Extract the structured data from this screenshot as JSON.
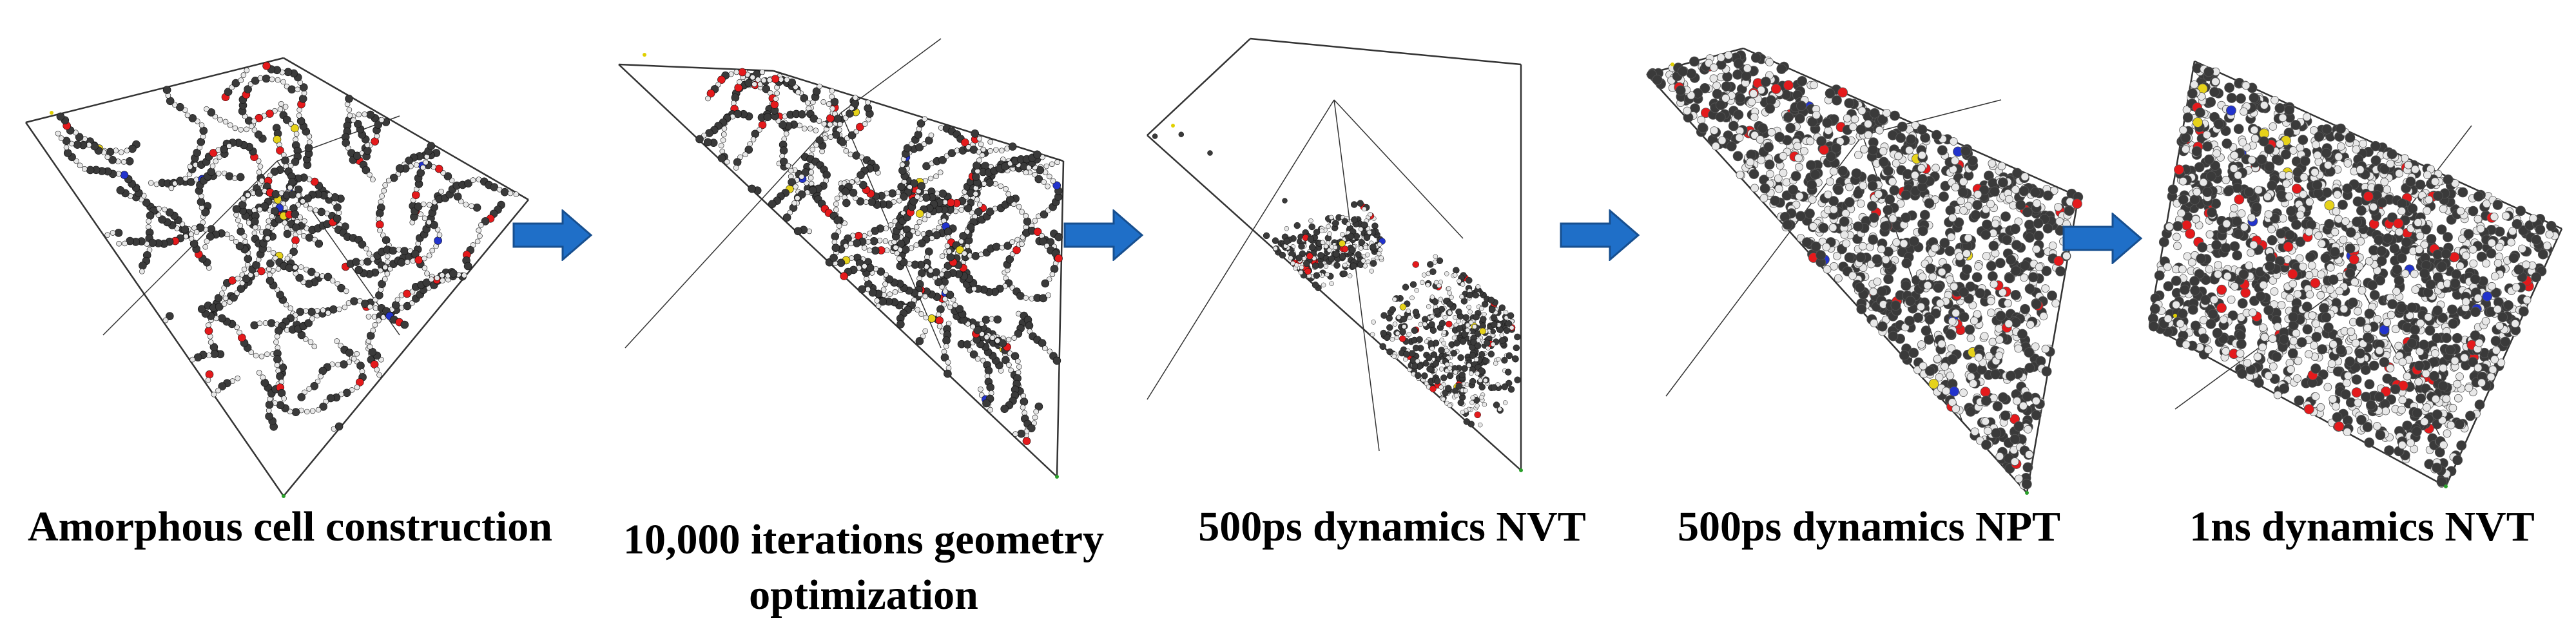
{
  "stages": [
    {
      "label": "Amorphous cell construction",
      "line2": ""
    },
    {
      "label": "10,000 iterations geometry",
      "line2": "optimization"
    },
    {
      "label": "500ps dynamics NVT",
      "line2": ""
    },
    {
      "label": "500ps dynamics NPT",
      "line2": ""
    },
    {
      "label": "1ns dynamics NVT",
      "line2": ""
    }
  ],
  "colors": {
    "arrow": "#1f6fc8",
    "arrow_edge": "#174f8f",
    "atom_carbon": "#3a3a3a",
    "atom_hydrogen": "#e8e8e8",
    "atom_oxygen": "#e41a1c",
    "atom_nitrogen": "#2233cc",
    "atom_sulfur": "#e6d21a"
  },
  "icons": [
    "molecular-simulation-cell",
    "flow-arrow-right"
  ]
}
